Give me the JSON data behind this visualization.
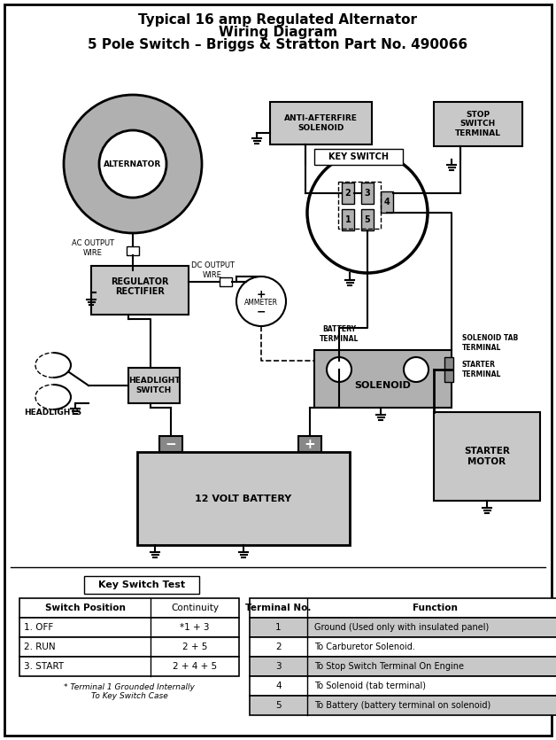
{
  "title_line1": "Typical 16 amp Regulated Alternator",
  "title_line2": "Wiring Diagram",
  "title_line3": "5 Pole Switch – Briggs & Stratton Part No. 490066",
  "bg_color": "#ffffff",
  "component_gray": "#b0b0b0",
  "component_lightgray": "#c8c8c8",
  "component_darkgray": "#888888",
  "switch_positions": [
    "1. OFF",
    "2. RUN",
    "3. START"
  ],
  "continuity": [
    "*1 + 3",
    "2 + 5",
    "2 + 4 + 5"
  ],
  "terminal_nos": [
    "1",
    "2",
    "3",
    "4",
    "5"
  ],
  "functions": [
    "Ground (Used only with insulated panel)",
    "To Carburetor Solenoid.",
    "To Stop Switch Terminal On Engine",
    "To Solenoid (tab terminal)",
    "To Battery (battery terminal on solenoid)"
  ],
  "footnote": "* Terminal 1 Grounded Internally\nTo Key Switch Case"
}
